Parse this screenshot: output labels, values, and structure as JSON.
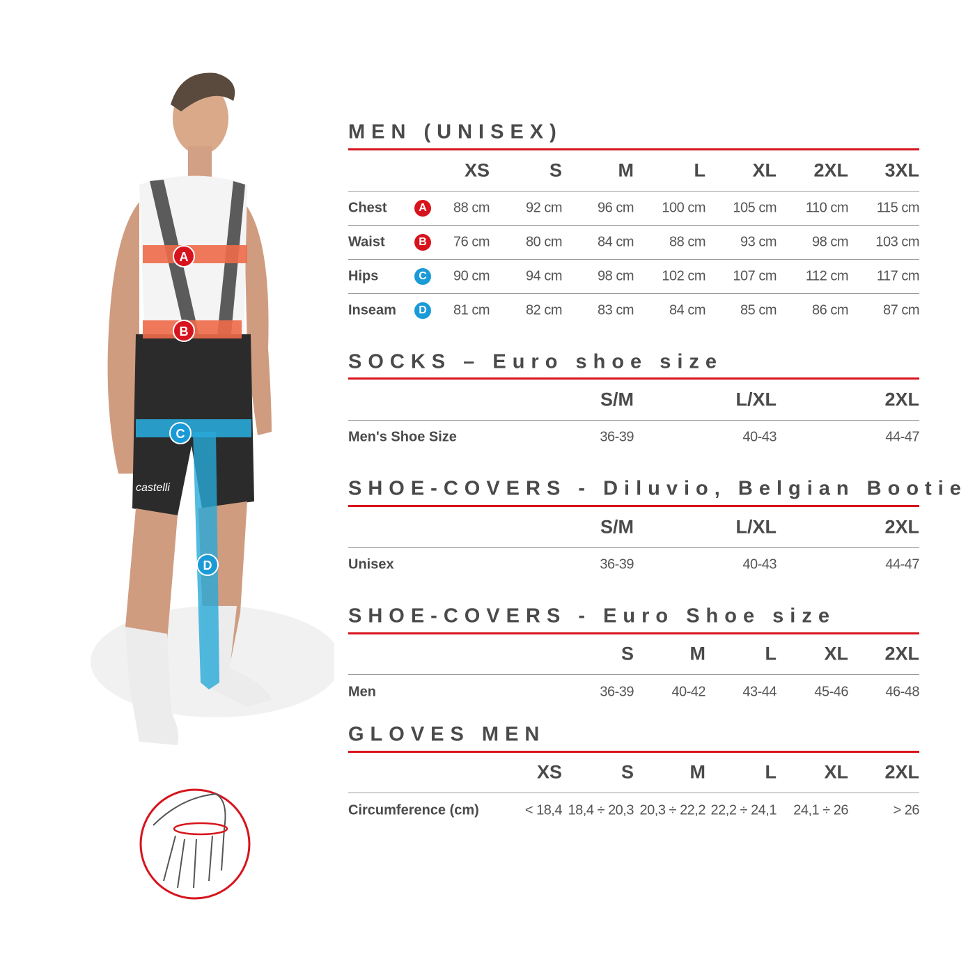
{
  "colors": {
    "accent_red": "#d7141d",
    "marker_red": "#d7141d",
    "marker_blue": "#1a9ad6",
    "band_orange": "#ee6a4a",
    "band_blue": "#28a9d8",
    "text": "#4a4a4a"
  },
  "figure": {
    "markers": [
      "A",
      "B",
      "C",
      "D"
    ],
    "brand": "castelli"
  },
  "sections": [
    {
      "title": "MEN (UNISEX)",
      "columns": [
        "XS",
        "S",
        "M",
        "L",
        "XL",
        "2XL",
        "3XL"
      ],
      "rows": [
        {
          "label": "Chest",
          "badge": "A",
          "values": [
            "88 cm",
            "92 cm",
            "96 cm",
            "100 cm",
            "105 cm",
            "110 cm",
            "115 cm"
          ]
        },
        {
          "label": "Waist",
          "badge": "B",
          "values": [
            "76 cm",
            "80 cm",
            "84 cm",
            "88 cm",
            "93 cm",
            "98 cm",
            "103 cm"
          ]
        },
        {
          "label": "Hips",
          "badge": "C",
          "values": [
            "90 cm",
            "94 cm",
            "98 cm",
            "102 cm",
            "107 cm",
            "112 cm",
            "117 cm"
          ]
        },
        {
          "label": "Inseam",
          "badge": "D",
          "values": [
            "81 cm",
            "82 cm",
            "83 cm",
            "84 cm",
            "85 cm",
            "86 cm",
            "87 cm"
          ]
        }
      ]
    },
    {
      "title": "SOCKS – Euro shoe size",
      "columns": [
        "S/M",
        "L/XL",
        "2XL"
      ],
      "rows": [
        {
          "label": "Men's Shoe Size",
          "values": [
            "36-39",
            "40-43",
            "44-47"
          ]
        }
      ]
    },
    {
      "title": "SHOE-COVERS - Diluvio, Belgian Bootie",
      "columns": [
        "S/M",
        "L/XL",
        "2XL"
      ],
      "rows": [
        {
          "label": "Unisex",
          "values": [
            "36-39",
            "40-43",
            "44-47"
          ]
        }
      ]
    },
    {
      "title": "SHOE-COVERS - Euro Shoe size",
      "columns": [
        "S",
        "M",
        "L",
        "XL",
        "2XL"
      ],
      "rows": [
        {
          "label": "Men",
          "values": [
            "36-39",
            "40-42",
            "43-44",
            "45-46",
            "46-48"
          ]
        }
      ]
    },
    {
      "title": "GLOVES MEN",
      "columns": [
        "XS",
        "S",
        "M",
        "L",
        "XL",
        "2XL"
      ],
      "rows": [
        {
          "label": "Circumference (cm)",
          "values": [
            "< 18,4",
            "18,4 ÷ 20,3",
            "20,3 ÷ 22,2",
            "22,2 ÷ 24,1",
            "24,1 ÷ 26",
            "> 26"
          ]
        }
      ]
    }
  ]
}
